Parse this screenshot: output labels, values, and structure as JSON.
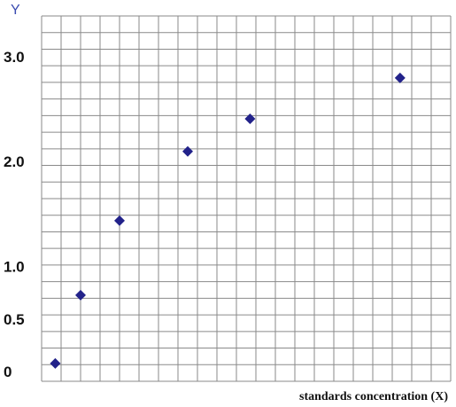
{
  "chart_data": {
    "type": "scatter",
    "y_label": "Y",
    "x_label": "standards concentration (X)",
    "series": [
      {
        "color": "#22228a",
        "x": [
          0.7,
          2,
          4,
          7.5,
          10.7,
          18.4
        ],
        "values": [
          0.09,
          0.74,
          1.45,
          2.11,
          2.42,
          2.81
        ]
      }
    ],
    "xlim": [
      0,
      21
    ],
    "ylim": [
      -0.08,
      3.4
    ],
    "yticks": [
      0,
      0.5,
      {
        "value": 1,
        "label": "1.0"
      },
      {
        "value": 2,
        "label": "2.0"
      },
      {
        "value": 3,
        "label": "3.0"
      }
    ]
  }
}
